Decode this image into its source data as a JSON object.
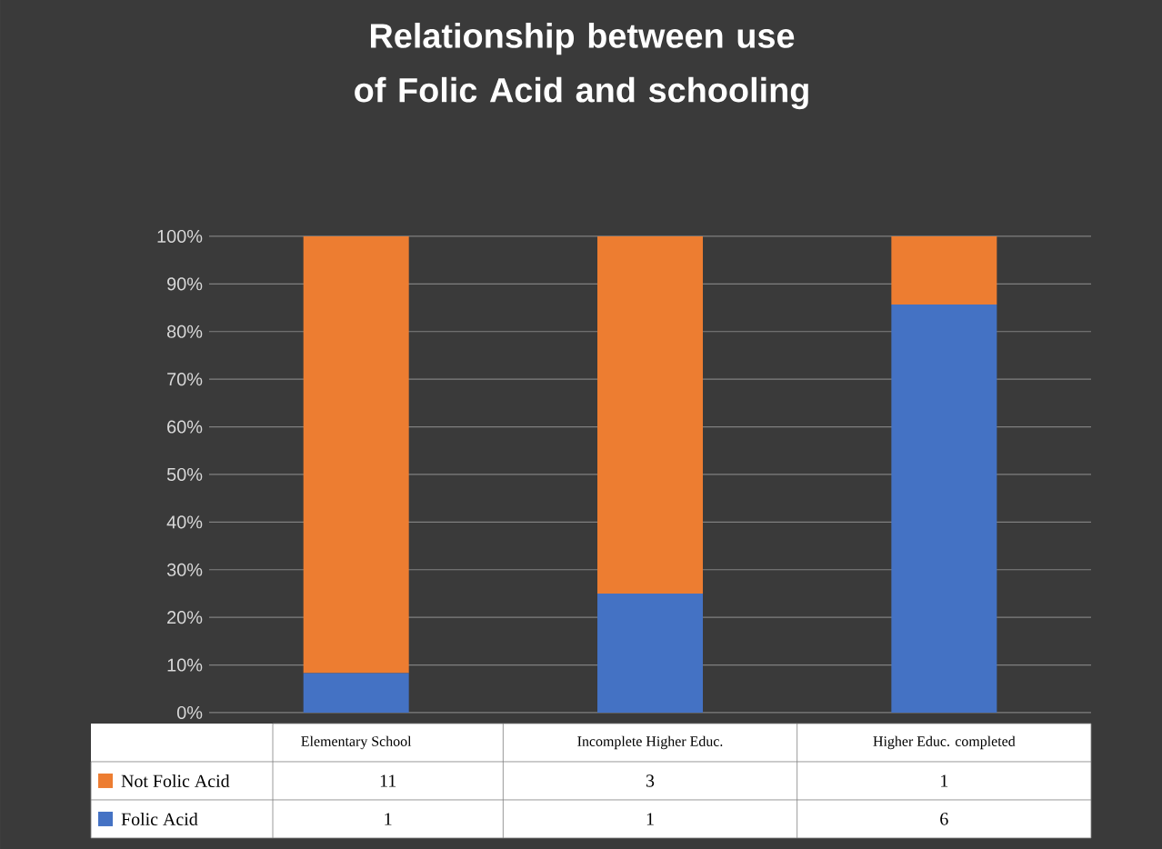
{
  "chart_data": {
    "type": "bar",
    "title": "Relationship between use of Folic Acid and schooling",
    "categories": [
      "Elementary School",
      "Incomplete Higher Educ.",
      "Higher Educ. completed"
    ],
    "stacked": true,
    "series": [
      {
        "name": "Folic Acid",
        "color": "#4472c4",
        "values": [
          8.3,
          25,
          85.7
        ]
      },
      {
        "name": "Not Folic Acid",
        "color": "#ed7d31",
        "values": [
          91.7,
          75,
          14.3
        ]
      }
    ],
    "annotations": [
      "11",
      "3",
      "1",
      "1",
      "1",
      "6"
    ],
    "ylim": [
      0,
      100
    ],
    "yticks": [
      {
        "value": 0,
        "label": "0%"
      },
      {
        "value": 10,
        "label": "10%"
      },
      {
        "value": 20,
        "label": "20%"
      },
      {
        "value": 30,
        "label": "30%"
      },
      {
        "value": 40,
        "label": "40%"
      },
      {
        "value": 50,
        "label": "50%"
      },
      {
        "value": 60,
        "label": "60%"
      },
      {
        "value": 70,
        "label": "70%"
      },
      {
        "value": 80,
        "label": "80%"
      },
      {
        "value": 90,
        "label": "90%"
      },
      {
        "value": 100,
        "label": "100%"
      }
    ],
    "grid": "y",
    "legend": "bottom"
  }
}
